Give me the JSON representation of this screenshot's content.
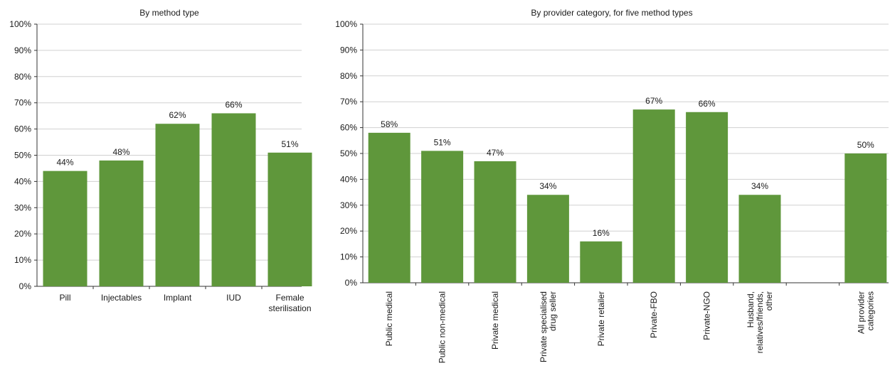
{
  "colors": {
    "bar": "#5f973b",
    "grid": "#d0d0d0",
    "axis": "#333333"
  },
  "chart_data": [
    {
      "type": "bar",
      "title": "By method type",
      "categories": [
        [
          "Pill"
        ],
        [
          "Injectables"
        ],
        [
          "Implant"
        ],
        [
          "IUD"
        ],
        [
          "Female",
          "sterilisation"
        ]
      ],
      "values": [
        44,
        48,
        62,
        66,
        51
      ],
      "value_labels": [
        "44%",
        "48%",
        "62%",
        "66%",
        "51%"
      ],
      "ylim": [
        0,
        100
      ],
      "yticks": [
        "0%",
        "10%",
        "20%",
        "30%",
        "40%",
        "50%",
        "60%",
        "70%",
        "80%",
        "90%",
        "100%"
      ],
      "grid": true,
      "xlabel": "",
      "ylabel": ""
    },
    {
      "type": "bar",
      "title": "By provider category, for five method types",
      "categories": [
        [
          "Public medical"
        ],
        [
          "Public non-medical"
        ],
        [
          "Private medical"
        ],
        [
          "Private specialised",
          "drug seller"
        ],
        [
          "Private retailer"
        ],
        [
          "Private-FBO"
        ],
        [
          "Private-NGO"
        ],
        [
          "Husband,",
          "relatives/friends,",
          "other"
        ],
        [],
        [
          "All provider",
          "categories"
        ]
      ],
      "values": [
        58,
        51,
        47,
        34,
        16,
        67,
        66,
        34,
        null,
        50
      ],
      "value_labels": [
        "58%",
        "51%",
        "47%",
        "34%",
        "16%",
        "67%",
        "66%",
        "34%",
        "",
        "50%"
      ],
      "ylim": [
        0,
        100
      ],
      "yticks": [
        "0%",
        "10%",
        "20%",
        "30%",
        "40%",
        "50%",
        "60%",
        "70%",
        "80%",
        "90%",
        "100%"
      ],
      "grid": true,
      "xlabel": "",
      "ylabel": ""
    }
  ]
}
